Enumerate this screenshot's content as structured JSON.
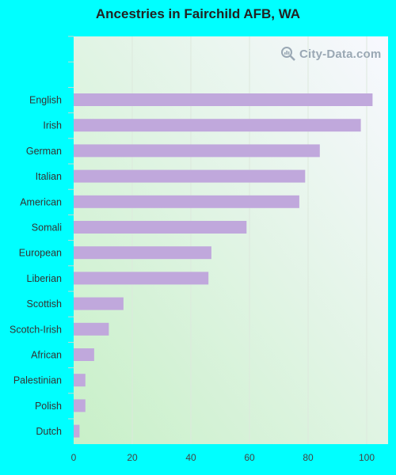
{
  "title": "Ancestries in Fairchild AFB, WA",
  "watermark": "City-Data.com",
  "colors": {
    "background": "#00ffff",
    "bar": "#c0a8dc",
    "grid": "#dde8dd",
    "plot_gradient_start": "#c8f0c8",
    "plot_gradient_end": "#f8f8ff"
  },
  "chart_data": {
    "type": "bar",
    "orientation": "horizontal",
    "title": "Ancestries in Fairchild AFB, WA",
    "xlabel": "",
    "ylabel": "",
    "categories": [
      "English",
      "Irish",
      "German",
      "Italian",
      "American",
      "Somali",
      "European",
      "Liberian",
      "Scottish",
      "Scotch-Irish",
      "African",
      "Palestinian",
      "Polish",
      "Dutch"
    ],
    "values": [
      102,
      98,
      84,
      79,
      77,
      59,
      47,
      46,
      17,
      12,
      7,
      4,
      4,
      2
    ],
    "xlim": [
      0,
      107
    ],
    "xticks": [
      0,
      20,
      40,
      60,
      80,
      100
    ],
    "grid": true,
    "legend": "none"
  }
}
